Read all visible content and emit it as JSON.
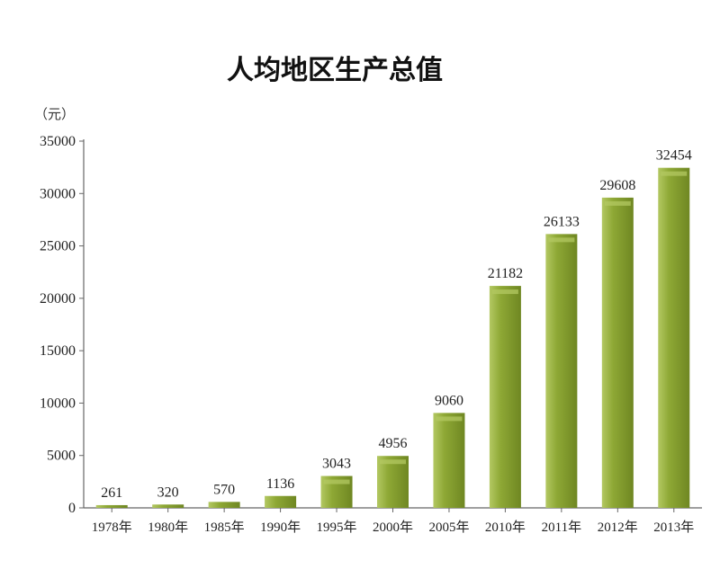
{
  "chart_data": {
    "type": "bar",
    "title": "人均地区生产总值",
    "ylabel": "（元）",
    "xlabel": "",
    "categories": [
      "1978年",
      "1980年",
      "1985年",
      "1990年",
      "1995年",
      "2000年",
      "2005年",
      "2010年",
      "2011年",
      "2012年",
      "2013年"
    ],
    "values": [
      261,
      320,
      570,
      1136,
      3043,
      4956,
      9060,
      21182,
      26133,
      29608,
      32454
    ],
    "ylim": [
      0,
      35000
    ],
    "yticks": [
      0,
      5000,
      10000,
      15000,
      20000,
      25000,
      30000,
      35000
    ],
    "grid": false,
    "legend": "none",
    "colors": {
      "bar": "#8ea835",
      "bar_light": "#b3c862",
      "bar_dark": "#6f8722",
      "axis": "#666666"
    }
  }
}
